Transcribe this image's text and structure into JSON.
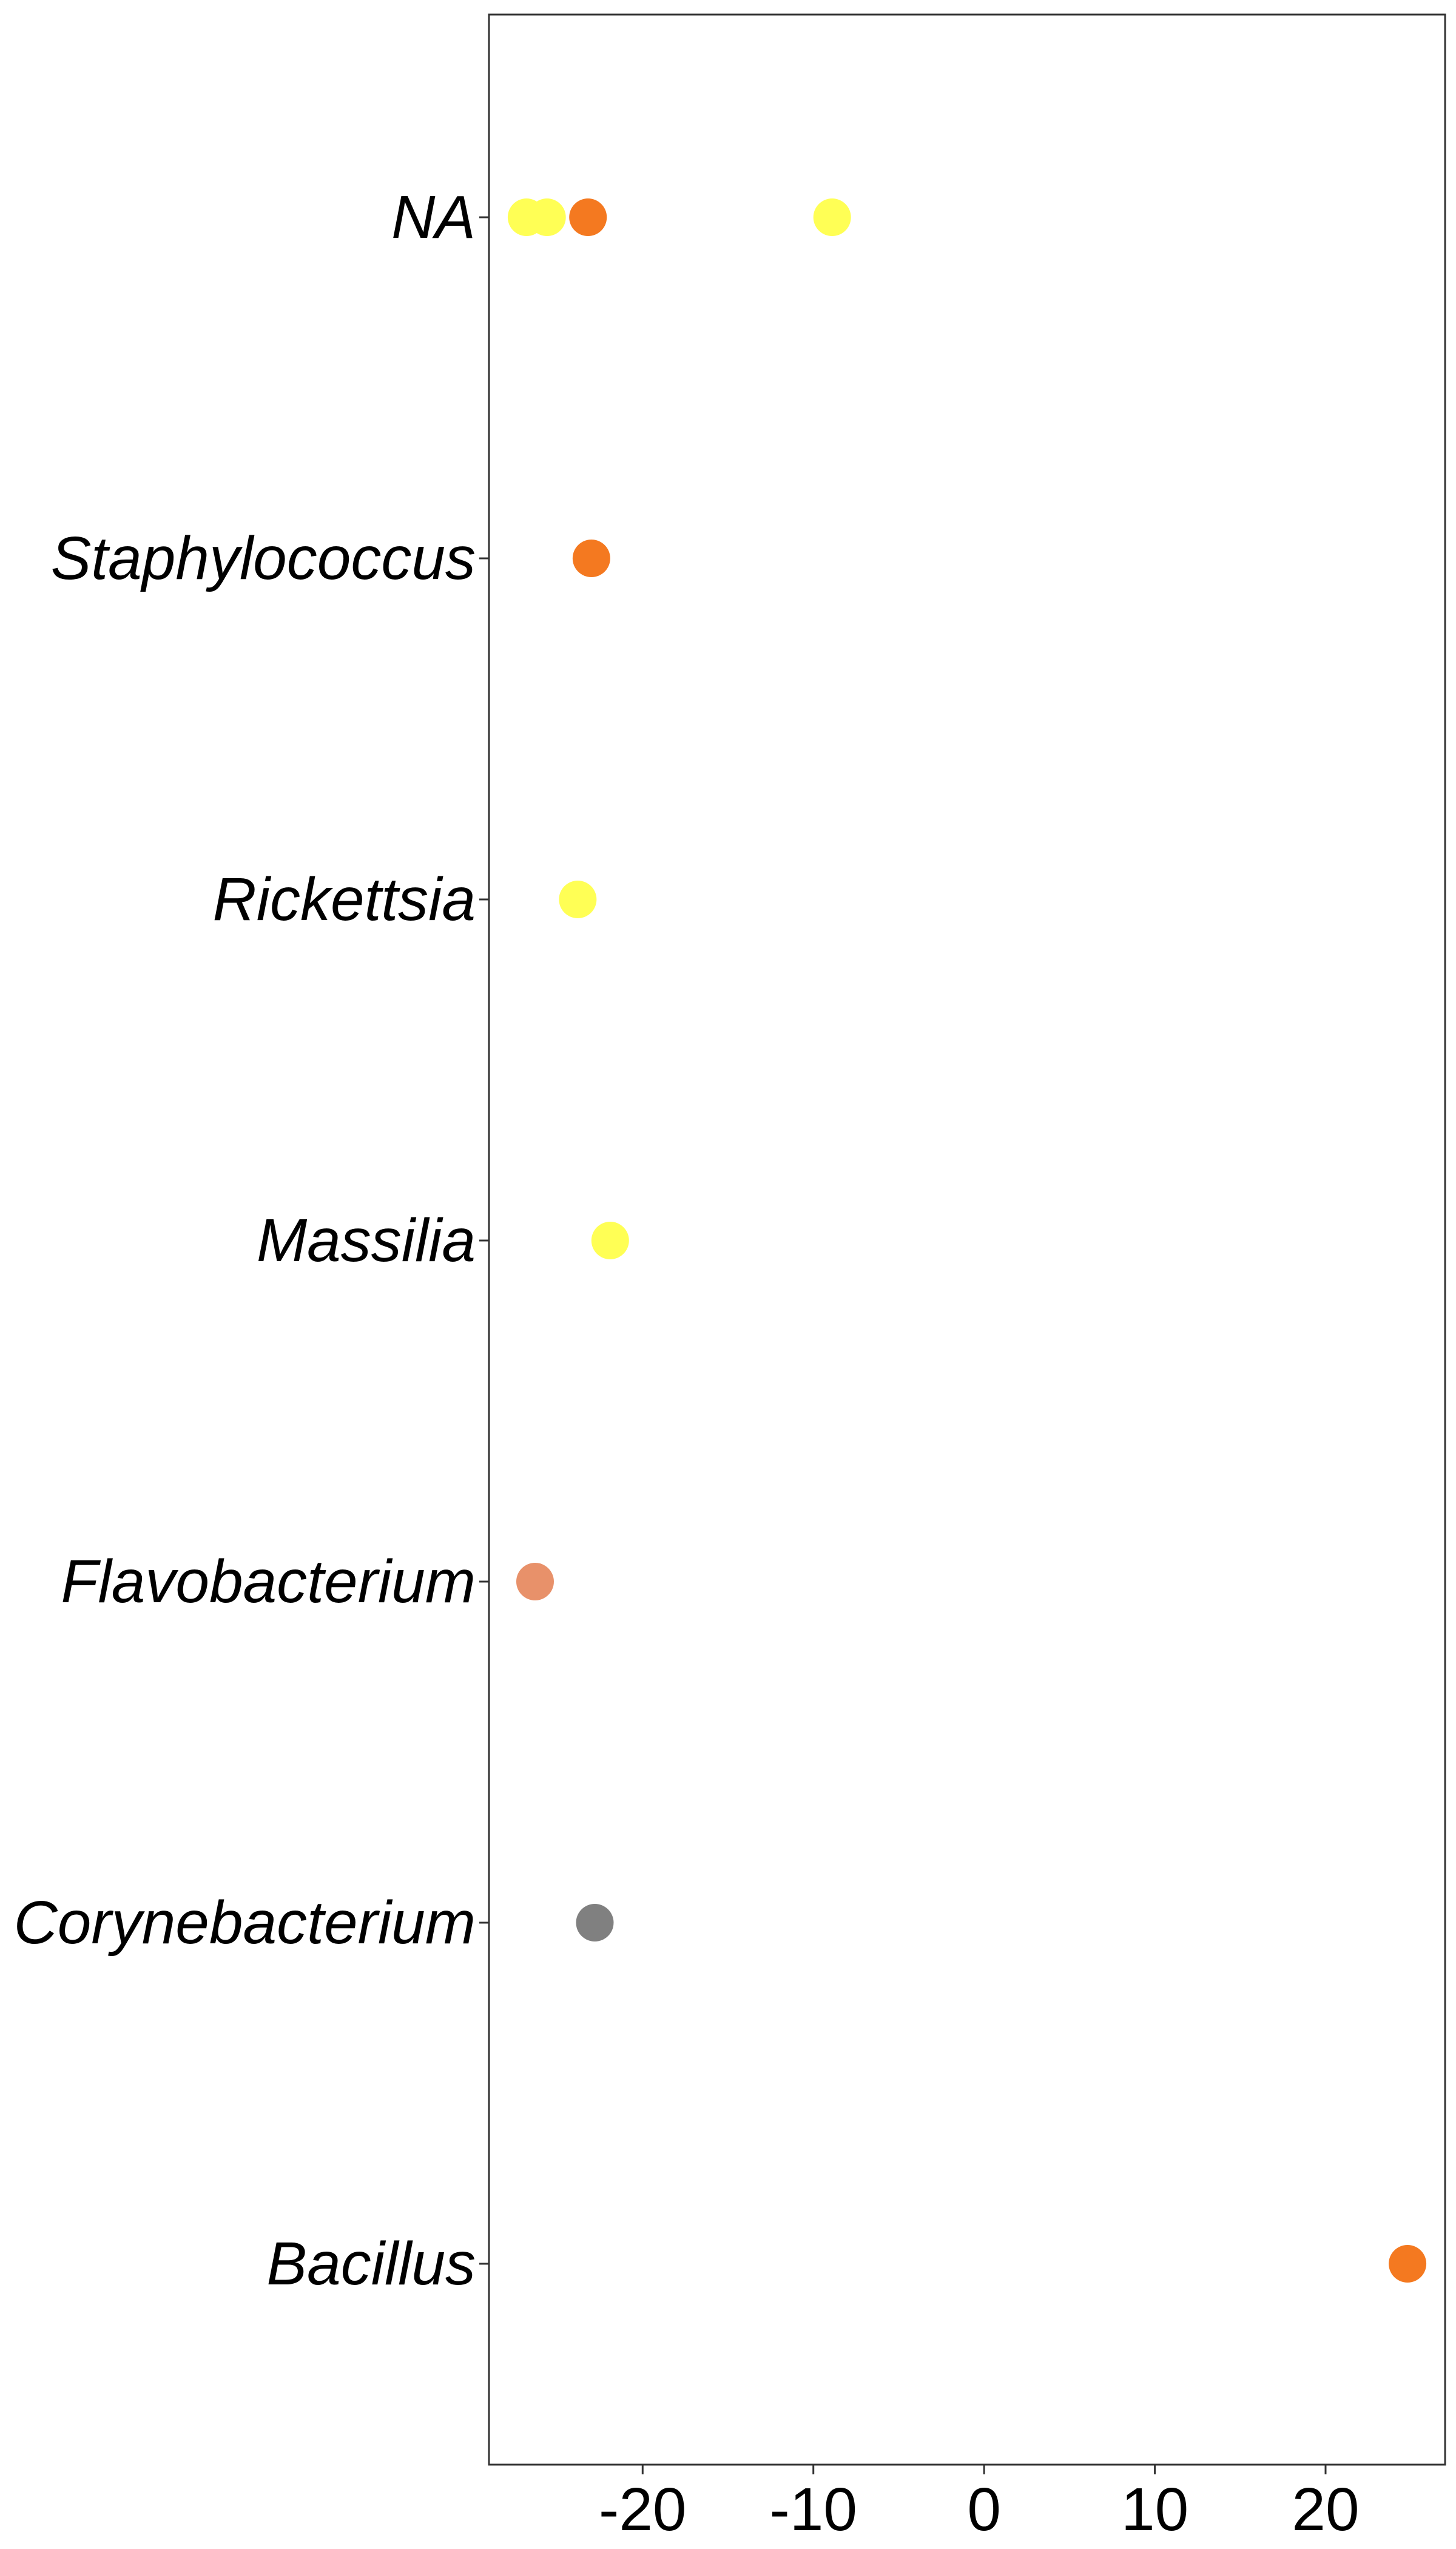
{
  "chart_data": {
    "type": "scatter",
    "title": "",
    "xlabel": "",
    "ylabel": "",
    "xlim": [
      -29,
      27
    ],
    "x_ticks": [
      -20,
      -10,
      0,
      10,
      20
    ],
    "x_tick_labels": [
      "-20",
      "-10",
      "0",
      "10",
      "20"
    ],
    "categories": [
      "NA",
      "Staphylococcus",
      "Rickettsia",
      "Massilia",
      "Flavobacterium",
      "Corynebacterium",
      "Bacillus"
    ],
    "grid": false,
    "legend": "none",
    "colors": {
      "yellow": "#FFFF55",
      "orange": "#F47920",
      "salmon": "#E8916A",
      "grey": "#808080"
    },
    "points": [
      {
        "category": "NA",
        "x": -26.8,
        "color": "yellow"
      },
      {
        "category": "NA",
        "x": -25.6,
        "color": "yellow"
      },
      {
        "category": "NA",
        "x": -23.2,
        "color": "orange"
      },
      {
        "category": "NA",
        "x": -8.9,
        "color": "yellow"
      },
      {
        "category": "Staphylococcus",
        "x": -23.0,
        "color": "orange"
      },
      {
        "category": "Rickettsia",
        "x": -23.8,
        "color": "yellow"
      },
      {
        "category": "Massilia",
        "x": -21.9,
        "color": "yellow"
      },
      {
        "category": "Flavobacterium",
        "x": -26.3,
        "color": "salmon"
      },
      {
        "category": "Corynebacterium",
        "x": -22.8,
        "color": "grey"
      },
      {
        "category": "Bacillus",
        "x": 24.8,
        "color": "orange"
      }
    ]
  }
}
